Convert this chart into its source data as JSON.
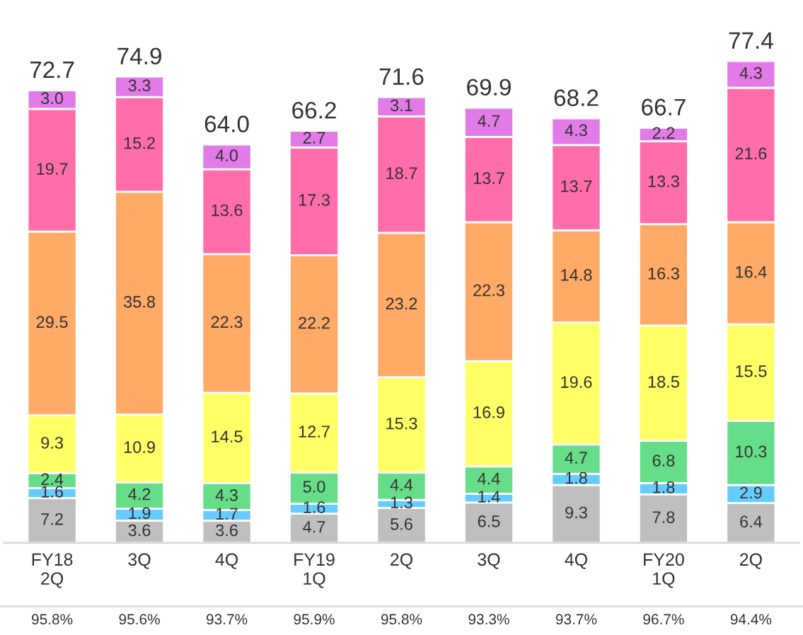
{
  "chart_data": {
    "type": "bar",
    "stacked": true,
    "categories": [
      "FY18\n2Q",
      "3Q",
      "4Q",
      "FY19\n1Q",
      "2Q",
      "3Q",
      "4Q",
      "FY20\n1Q",
      "2Q"
    ],
    "series": [
      {
        "color": "#bfbfbf",
        "values": [
          7.2,
          3.6,
          3.6,
          4.7,
          5.6,
          6.5,
          9.3,
          7.8,
          6.4
        ],
        "value_labels": [
          "7.2",
          "3.6",
          "3.6",
          "4.7",
          "5.6",
          "6.5",
          "9.3",
          "7.8",
          "6.4"
        ]
      },
      {
        "color": "#66ccff",
        "values": [
          1.6,
          1.9,
          1.7,
          1.6,
          1.3,
          1.4,
          1.8,
          1.8,
          2.9
        ],
        "value_labels": [
          "1.6",
          "1.9",
          "1.7",
          "1.6",
          "1.3",
          "1.4",
          "1.8",
          "1.8",
          "2.9"
        ]
      },
      {
        "color": "#66dd88",
        "values": [
          2.4,
          4.2,
          4.3,
          5.0,
          4.4,
          4.4,
          4.7,
          6.8,
          10.3
        ],
        "value_labels": [
          "2.4",
          "4.2",
          "4.3",
          "5.0",
          "4.4",
          "4.4",
          "4.7",
          "6.8",
          "10.3"
        ]
      },
      {
        "color": "#ffff66",
        "values": [
          9.3,
          10.9,
          14.5,
          12.7,
          15.3,
          16.9,
          19.6,
          18.5,
          15.5
        ],
        "value_labels": [
          "9.3",
          "10.9",
          "14.5",
          "12.7",
          "15.3",
          "16.9",
          "19.6",
          "18.5",
          "15.5"
        ]
      },
      {
        "color": "#ffaa66",
        "values": [
          29.5,
          35.8,
          22.3,
          22.2,
          23.2,
          22.3,
          14.8,
          16.3,
          16.4
        ],
        "value_labels": [
          "29.5",
          "35.8",
          "22.3",
          "22.2",
          "23.2",
          "22.3",
          "14.8",
          "16.3",
          "16.4"
        ]
      },
      {
        "color": "#ff6eaa",
        "values": [
          19.7,
          15.2,
          13.6,
          17.3,
          18.7,
          13.7,
          13.7,
          13.3,
          21.6
        ],
        "value_labels": [
          "19.7",
          "15.2",
          "13.6",
          "17.3",
          "18.7",
          "13.7",
          "13.7",
          "13.3",
          "21.6"
        ]
      },
      {
        "color": "#e27ae8",
        "values": [
          3.0,
          3.3,
          4.0,
          2.7,
          3.1,
          4.7,
          4.3,
          2.2,
          4.3
        ],
        "value_labels": [
          "3.0",
          "3.3",
          "4.0",
          "2.7",
          "3.1",
          "4.7",
          "4.3",
          "2.2",
          "4.3"
        ]
      }
    ],
    "totals": [
      "72.7",
      "74.9",
      "64.0",
      "66.2",
      "71.6",
      "69.9",
      "68.2",
      "66.7",
      "77.4"
    ],
    "annotations": [
      "95.8%",
      "95.6%",
      "93.7%",
      "95.9%",
      "95.8%",
      "93.3%",
      "93.7%",
      "96.7%",
      "94.4%"
    ]
  }
}
